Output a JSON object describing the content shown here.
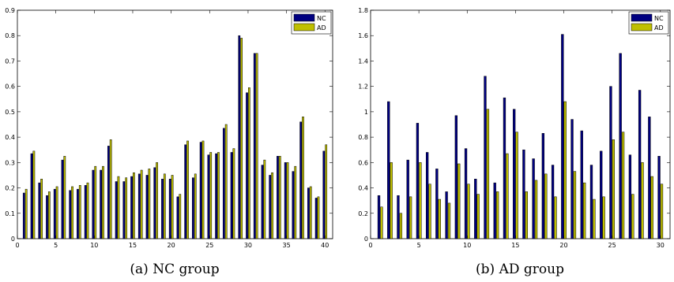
{
  "colors": {
    "nc": "#000080",
    "ad": "#bfbf00"
  },
  "chart_data": [
    {
      "type": "bar",
      "caption": "(a) NC group",
      "xlim": [
        0,
        41
      ],
      "ylim": [
        0,
        0.9
      ],
      "xticks": [
        0,
        5,
        10,
        15,
        20,
        25,
        30,
        35,
        40
      ],
      "yticks": [
        0,
        0.1,
        0.2,
        0.3,
        0.4,
        0.5,
        0.6,
        0.7,
        0.8,
        0.9
      ],
      "ytick_labels": [
        "0",
        "0.1",
        "0.2",
        "0.3",
        "0.4",
        "0.5",
        "0.6",
        "0.7",
        "0.8",
        "0.9"
      ],
      "legend_position": "top-right",
      "x": [
        1,
        2,
        3,
        4,
        5,
        6,
        7,
        8,
        9,
        10,
        11,
        12,
        13,
        14,
        15,
        16,
        17,
        18,
        19,
        20,
        21,
        22,
        23,
        24,
        25,
        26,
        27,
        28,
        29,
        30,
        31,
        32,
        33,
        34,
        35,
        36,
        37,
        38,
        39,
        40
      ],
      "series": [
        {
          "name": "NC",
          "color": "#000080",
          "values": [
            0.18,
            0.335,
            0.22,
            0.17,
            0.195,
            0.31,
            0.19,
            0.195,
            0.21,
            0.27,
            0.27,
            0.365,
            0.225,
            0.225,
            0.245,
            0.255,
            0.25,
            0.28,
            0.235,
            0.235,
            0.165,
            0.37,
            0.24,
            0.38,
            0.33,
            0.335,
            0.435,
            0.34,
            0.8,
            0.575,
            0.73,
            0.29,
            0.25,
            0.325,
            0.3,
            0.265,
            0.46,
            0.2,
            0.16,
            0.345
          ]
        },
        {
          "name": "AD",
          "color": "#bfbf00",
          "values": [
            0.195,
            0.345,
            0.235,
            0.185,
            0.205,
            0.325,
            0.205,
            0.21,
            0.22,
            0.285,
            0.285,
            0.39,
            0.245,
            0.24,
            0.26,
            0.27,
            0.275,
            0.3,
            0.255,
            0.25,
            0.175,
            0.385,
            0.255,
            0.385,
            0.34,
            0.34,
            0.45,
            0.355,
            0.79,
            0.595,
            0.73,
            0.31,
            0.26,
            0.325,
            0.3,
            0.285,
            0.48,
            0.205,
            0.165,
            0.37
          ]
        }
      ]
    },
    {
      "type": "bar",
      "caption": "(b) AD group",
      "xlim": [
        0,
        31
      ],
      "ylim": [
        0,
        1.8
      ],
      "xticks": [
        0,
        5,
        10,
        15,
        20,
        25,
        30
      ],
      "yticks": [
        0,
        0.2,
        0.4,
        0.6,
        0.8,
        1.0,
        1.2,
        1.4,
        1.6,
        1.8
      ],
      "ytick_labels": [
        "0",
        "0.2",
        "0.4",
        "0.6",
        "0.8",
        "1",
        "1.2",
        "1.4",
        "1.6",
        "1.8"
      ],
      "legend_position": "top-right",
      "x": [
        1,
        2,
        3,
        4,
        5,
        6,
        7,
        8,
        9,
        10,
        11,
        12,
        13,
        14,
        15,
        16,
        17,
        18,
        19,
        20,
        21,
        22,
        23,
        24,
        25,
        26,
        27,
        28,
        29,
        30
      ],
      "series": [
        {
          "name": "NC",
          "color": "#000080",
          "values": [
            0.34,
            1.08,
            0.34,
            0.62,
            0.91,
            0.68,
            0.55,
            0.37,
            0.97,
            0.71,
            0.47,
            1.28,
            0.44,
            1.11,
            1.02,
            0.7,
            0.63,
            0.83,
            0.58,
            1.61,
            0.94,
            0.85,
            0.58,
            0.69,
            1.2,
            1.46,
            0.66,
            1.17,
            0.96,
            0.65
          ]
        },
        {
          "name": "AD",
          "color": "#bfbf00",
          "values": [
            0.25,
            0.6,
            0.2,
            0.33,
            0.6,
            0.43,
            0.31,
            0.28,
            0.59,
            0.43,
            0.35,
            1.02,
            0.37,
            0.67,
            0.84,
            0.37,
            0.46,
            0.51,
            0.33,
            1.08,
            0.53,
            0.44,
            0.31,
            0.33,
            0.78,
            0.84,
            0.35,
            0.6,
            0.49,
            0.43
          ]
        }
      ]
    }
  ]
}
